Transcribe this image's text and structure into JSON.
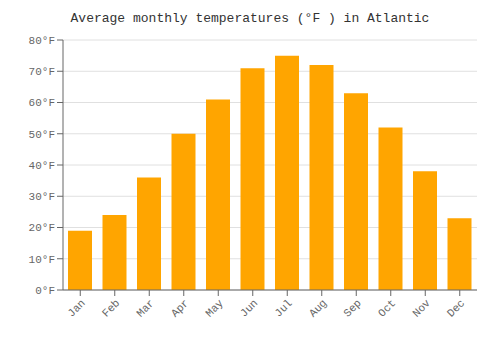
{
  "chart_data": {
    "type": "bar",
    "title": "Average monthly temperatures (°F ) in Atlantic",
    "categories": [
      "Jan",
      "Feb",
      "Mar",
      "Apr",
      "May",
      "Jun",
      "Jul",
      "Aug",
      "Sep",
      "Oct",
      "Nov",
      "Dec"
    ],
    "values": [
      19,
      24,
      36,
      50,
      61,
      71,
      75,
      72,
      63,
      52,
      38,
      23
    ],
    "color": "#FFA500",
    "ylim": [
      0,
      80
    ],
    "yticks": [
      {
        "value": 0,
        "label": "0°F"
      },
      {
        "value": 10,
        "label": "10°F"
      },
      {
        "value": 20,
        "label": "20°F"
      },
      {
        "value": 30,
        "label": "30°F"
      },
      {
        "value": 40,
        "label": "40°F"
      },
      {
        "value": 50,
        "label": "50°F"
      },
      {
        "value": 60,
        "label": "60°F"
      },
      {
        "value": 70,
        "label": "70°F"
      },
      {
        "value": 80,
        "label": "80°F"
      }
    ],
    "grid": true
  }
}
